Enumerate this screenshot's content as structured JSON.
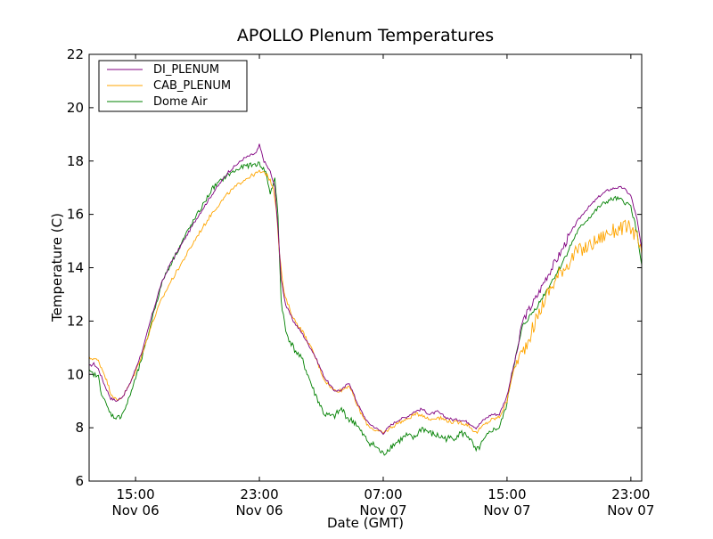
{
  "chart_data": {
    "type": "line",
    "title": "APOLLO Plenum Temperatures",
    "xlabel": "Date (GMT)",
    "ylabel": "Temperature (C)",
    "x_unit": "hours since Nov 06 12:00 GMT",
    "xlim": [
      0,
      35.7
    ],
    "ylim": [
      6,
      22
    ],
    "yticks": [
      6,
      8,
      10,
      12,
      14,
      16,
      18,
      20,
      22
    ],
    "xticks": [
      {
        "x": 3,
        "line1": "15:00",
        "line2": "Nov 06"
      },
      {
        "x": 11,
        "line1": "23:00",
        "line2": "Nov 06"
      },
      {
        "x": 19,
        "line1": "07:00",
        "line2": "Nov 07"
      },
      {
        "x": 27,
        "line1": "15:00",
        "line2": "Nov 07"
      },
      {
        "x": 35,
        "line1": "23:00",
        "line2": "Nov 07"
      }
    ],
    "legend_position": "top-left",
    "series": [
      {
        "name": "DI_PLENUM",
        "color": "#800080",
        "points": [
          [
            0,
            10.3
          ],
          [
            0.3,
            10.4
          ],
          [
            0.6,
            10.2
          ],
          [
            1,
            9.6
          ],
          [
            1.4,
            9.1
          ],
          [
            1.8,
            9.0
          ],
          [
            2.2,
            9.2
          ],
          [
            2.6,
            9.6
          ],
          [
            3,
            10.2
          ],
          [
            3.5,
            11.0
          ],
          [
            4,
            12.1
          ],
          [
            4.6,
            13.3
          ],
          [
            5.2,
            14.1
          ],
          [
            6,
            14.9
          ],
          [
            7,
            15.9
          ],
          [
            8,
            16.8
          ],
          [
            9,
            17.6
          ],
          [
            10,
            18.1
          ],
          [
            10.8,
            18.3
          ],
          [
            11,
            18.6
          ],
          [
            11.3,
            18.0
          ],
          [
            11.7,
            17.6
          ],
          [
            12,
            17.0
          ],
          [
            12.2,
            15.5
          ],
          [
            12.4,
            13.6
          ],
          [
            12.7,
            12.6
          ],
          [
            13.2,
            12.0
          ],
          [
            13.8,
            11.5
          ],
          [
            14.5,
            10.8
          ],
          [
            15.2,
            9.9
          ],
          [
            15.8,
            9.4
          ],
          [
            16.3,
            9.4
          ],
          [
            16.8,
            9.7
          ],
          [
            17.2,
            9.1
          ],
          [
            17.6,
            8.6
          ],
          [
            18.0,
            8.2
          ],
          [
            18.5,
            8.0
          ],
          [
            19.0,
            7.8
          ],
          [
            19.5,
            8.1
          ],
          [
            20.0,
            8.3
          ],
          [
            20.5,
            8.4
          ],
          [
            21.0,
            8.6
          ],
          [
            21.5,
            8.7
          ],
          [
            22.0,
            8.5
          ],
          [
            22.5,
            8.6
          ],
          [
            23.0,
            8.4
          ],
          [
            23.5,
            8.3
          ],
          [
            24.0,
            8.3
          ],
          [
            24.5,
            8.2
          ],
          [
            25.0,
            8.0
          ],
          [
            25.5,
            8.3
          ],
          [
            26.0,
            8.5
          ],
          [
            26.5,
            8.5
          ],
          [
            27.0,
            9.2
          ],
          [
            27.3,
            10.0
          ],
          [
            27.7,
            11.0
          ],
          [
            28.0,
            12.0
          ],
          [
            28.5,
            12.5
          ],
          [
            29,
            13.0
          ],
          [
            29.5,
            13.6
          ],
          [
            30,
            14.1
          ],
          [
            30.5,
            14.6
          ],
          [
            31,
            15.2
          ],
          [
            31.5,
            15.7
          ],
          [
            32,
            16.1
          ],
          [
            32.5,
            16.4
          ],
          [
            33,
            16.7
          ],
          [
            33.5,
            16.9
          ],
          [
            34,
            17.0
          ],
          [
            34.5,
            17.0
          ],
          [
            35,
            16.7
          ],
          [
            35.4,
            15.8
          ],
          [
            35.7,
            14.7
          ]
        ]
      },
      {
        "name": "CAB_PLENUM",
        "color": "#ffa500",
        "points": [
          [
            0,
            10.6
          ],
          [
            0.3,
            10.6
          ],
          [
            0.6,
            10.5
          ],
          [
            1,
            10.0
          ],
          [
            1.4,
            9.3
          ],
          [
            1.8,
            9.0
          ],
          [
            2.2,
            9.2
          ],
          [
            2.6,
            9.6
          ],
          [
            3,
            10.1
          ],
          [
            3.5,
            10.9
          ],
          [
            4,
            11.8
          ],
          [
            4.6,
            12.7
          ],
          [
            5.2,
            13.4
          ],
          [
            6,
            14.2
          ],
          [
            7,
            15.2
          ],
          [
            8,
            16.1
          ],
          [
            9,
            16.8
          ],
          [
            10,
            17.3
          ],
          [
            11,
            17.6
          ],
          [
            11.5,
            17.5
          ],
          [
            11.9,
            17.0
          ],
          [
            12.1,
            16.2
          ],
          [
            12.3,
            14.5
          ],
          [
            12.6,
            13.0
          ],
          [
            13.2,
            12.1
          ],
          [
            13.8,
            11.6
          ],
          [
            14.5,
            10.8
          ],
          [
            15.2,
            9.8
          ],
          [
            15.8,
            9.4
          ],
          [
            16.3,
            9.4
          ],
          [
            16.8,
            9.6
          ],
          [
            17.2,
            9.0
          ],
          [
            17.6,
            8.5
          ],
          [
            18.0,
            8.1
          ],
          [
            18.5,
            7.9
          ],
          [
            19.0,
            7.8
          ],
          [
            19.5,
            8.0
          ],
          [
            20.0,
            8.2
          ],
          [
            20.5,
            8.3
          ],
          [
            21.0,
            8.5
          ],
          [
            21.5,
            8.5
          ],
          [
            22.0,
            8.3
          ],
          [
            22.5,
            8.4
          ],
          [
            23.0,
            8.3
          ],
          [
            23.5,
            8.2
          ],
          [
            24.0,
            8.2
          ],
          [
            24.5,
            8.1
          ],
          [
            25.0,
            7.8
          ],
          [
            25.5,
            8.1
          ],
          [
            26.0,
            8.3
          ],
          [
            26.5,
            8.4
          ],
          [
            27.0,
            9.0
          ],
          [
            27.3,
            9.9
          ],
          [
            27.7,
            10.6
          ],
          [
            28.0,
            10.8
          ],
          [
            28.5,
            11.5
          ],
          [
            29,
            12.2
          ],
          [
            29.5,
            12.9
          ],
          [
            30,
            13.4
          ],
          [
            30.5,
            13.9
          ],
          [
            31,
            14.2
          ],
          [
            31.5,
            14.6
          ],
          [
            32,
            14.7
          ],
          [
            32.5,
            14.9
          ],
          [
            33,
            15.1
          ],
          [
            33.5,
            15.3
          ],
          [
            34,
            15.4
          ],
          [
            34.5,
            15.5
          ],
          [
            35,
            15.5
          ],
          [
            35.4,
            15.1
          ],
          [
            35.7,
            14.5
          ]
        ]
      },
      {
        "name": "Dome Air",
        "color": "#008000",
        "points": [
          [
            0,
            10.1
          ],
          [
            0.3,
            10.0
          ],
          [
            0.6,
            9.9
          ],
          [
            0.8,
            9.3
          ],
          [
            1.0,
            9.0
          ],
          [
            1.3,
            8.6
          ],
          [
            1.6,
            8.4
          ],
          [
            2.0,
            8.4
          ],
          [
            2.4,
            8.8
          ],
          [
            2.8,
            9.5
          ],
          [
            3.2,
            10.2
          ],
          [
            3.7,
            11.2
          ],
          [
            4.2,
            12.4
          ],
          [
            4.8,
            13.6
          ],
          [
            5.5,
            14.4
          ],
          [
            6.3,
            15.3
          ],
          [
            7.2,
            16.2
          ],
          [
            8,
            17.0
          ],
          [
            9,
            17.5
          ],
          [
            10,
            17.8
          ],
          [
            11,
            17.9
          ],
          [
            11.4,
            17.6
          ],
          [
            11.7,
            16.8
          ],
          [
            12.0,
            17.3
          ],
          [
            12.2,
            16.0
          ],
          [
            12.4,
            12.8
          ],
          [
            12.7,
            11.6
          ],
          [
            13.2,
            11.0
          ],
          [
            13.8,
            10.5
          ],
          [
            14.5,
            9.4
          ],
          [
            15.2,
            8.5
          ],
          [
            15.8,
            8.4
          ],
          [
            16.3,
            8.7
          ],
          [
            16.8,
            8.3
          ],
          [
            17.2,
            8.2
          ],
          [
            17.6,
            7.8
          ],
          [
            18.0,
            7.5
          ],
          [
            18.5,
            7.3
          ],
          [
            19.0,
            7.0
          ],
          [
            19.5,
            7.3
          ],
          [
            20.0,
            7.5
          ],
          [
            20.5,
            7.7
          ],
          [
            21.0,
            7.6
          ],
          [
            21.5,
            8.0
          ],
          [
            22.0,
            7.8
          ],
          [
            22.5,
            7.7
          ],
          [
            23.0,
            7.6
          ],
          [
            23.5,
            7.6
          ],
          [
            24.0,
            7.8
          ],
          [
            24.5,
            7.7
          ],
          [
            25.0,
            7.1
          ],
          [
            25.5,
            7.5
          ],
          [
            26.0,
            7.9
          ],
          [
            26.5,
            8.0
          ],
          [
            27.0,
            8.9
          ],
          [
            27.3,
            10.0
          ],
          [
            27.7,
            11.0
          ],
          [
            28.0,
            11.8
          ],
          [
            28.5,
            12.2
          ],
          [
            29,
            12.6
          ],
          [
            29.5,
            13.1
          ],
          [
            30,
            13.6
          ],
          [
            30.5,
            14.1
          ],
          [
            31,
            14.7
          ],
          [
            31.5,
            15.3
          ],
          [
            32,
            15.7
          ],
          [
            32.5,
            16.0
          ],
          [
            33,
            16.3
          ],
          [
            33.5,
            16.5
          ],
          [
            34,
            16.6
          ],
          [
            34.5,
            16.5
          ],
          [
            35,
            16.3
          ],
          [
            35.4,
            15.3
          ],
          [
            35.7,
            14.1
          ]
        ]
      }
    ]
  }
}
